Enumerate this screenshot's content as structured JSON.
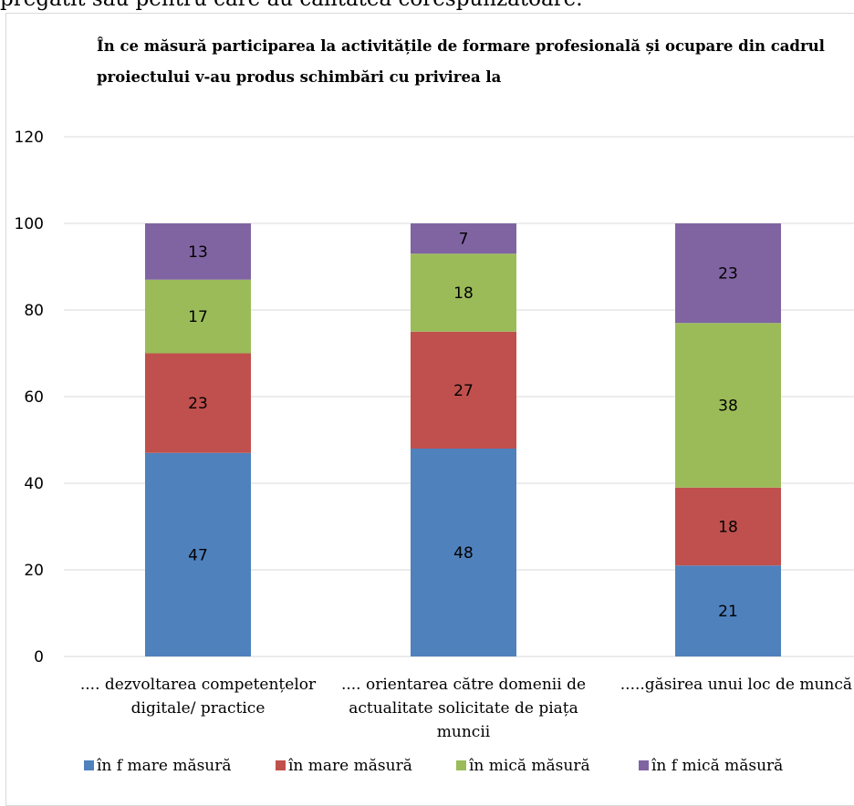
{
  "page": {
    "top_text": "pregătit sau pentru care au calitatea corespunzătoare."
  },
  "chart_data": {
    "type": "bar",
    "stacked": true,
    "title_lines": [
      "În ce măsură participarea la activitățile  de formare profesională și ocupare din cadrul",
      "proiectului v-au produs schimbări cu privirea la"
    ],
    "categories": [
      [
        ".... dezvoltarea competențelor",
        "digitale/ practice"
      ],
      [
        ".... orientarea către domenii de",
        "actualitate solicitate de piața",
        "muncii"
      ],
      [
        ".....găsirea unui loc de muncă"
      ]
    ],
    "series": [
      {
        "name": "în f mare măsură",
        "color": "#4F81BD",
        "values": [
          47,
          48,
          21
        ]
      },
      {
        "name": "în mare măsură",
        "color": "#C0504D",
        "values": [
          23,
          27,
          18
        ]
      },
      {
        "name": "în mică măsură",
        "color": "#9BBB59",
        "values": [
          17,
          18,
          38
        ]
      },
      {
        "name": "în f mică măsură",
        "color": "#8064A2",
        "values": [
          13,
          7,
          23
        ]
      }
    ],
    "ylim": [
      0,
      120
    ],
    "yticks": [
      0,
      20,
      40,
      60,
      80,
      100,
      120
    ],
    "grid": true,
    "legend_position": "bottom"
  }
}
